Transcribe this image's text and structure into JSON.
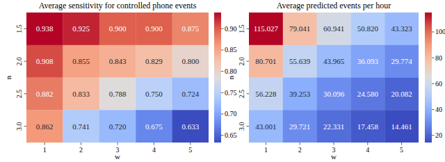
{
  "chart_data": [
    {
      "type": "heatmap",
      "title": "Average sensitivity for controlled phone events",
      "x_label": "w",
      "y_label": "n",
      "categories": [
        "1",
        "2",
        "3",
        "4",
        "5"
      ],
      "rows": [
        "1.5",
        "2.0",
        "2.5",
        "3.0"
      ],
      "values": [
        [
          0.938,
          0.925,
          0.9,
          0.9,
          0.875
        ],
        [
          0.908,
          0.855,
          0.843,
          0.829,
          0.8
        ],
        [
          0.882,
          0.833,
          0.788,
          0.75,
          0.724
        ],
        [
          0.862,
          0.741,
          0.72,
          0.675,
          0.633
        ]
      ],
      "value_labels": [
        [
          "0.938",
          "0.925",
          "0.900",
          "0.900",
          "0.875"
        ],
        [
          "0.908",
          "0.855",
          "0.843",
          "0.829",
          "0.800"
        ],
        [
          "0.882",
          "0.833",
          "0.788",
          "0.750",
          "0.724"
        ],
        [
          "0.862",
          "0.741",
          "0.720",
          "0.675",
          "0.633"
        ]
      ],
      "data_labels": true,
      "colorbar": {
        "range": [
          0.633,
          0.938
        ],
        "ticks": [
          0.65,
          {
            "value": 0.7,
            "label": "0.70"
          },
          0.75,
          {
            "value": 0.8,
            "label": "0.80"
          },
          0.85,
          {
            "value": 0.9,
            "label": "0.90"
          }
        ]
      }
    },
    {
      "type": "heatmap",
      "title": "Average predicted events per hour",
      "x_label": "w",
      "y_label": "n",
      "categories": [
        "1",
        "2",
        "3",
        "4",
        "5"
      ],
      "rows": [
        "1.5",
        "2.0",
        "2.5",
        "3.0"
      ],
      "values": [
        [
          115.027,
          79.041,
          60.941,
          50.82,
          43.323
        ],
        [
          80.701,
          55.639,
          43.965,
          36.093,
          29.774
        ],
        [
          56.228,
          39.253,
          30.096,
          24.58,
          20.082
        ],
        [
          43.001,
          29.721,
          22.331,
          17.458,
          14.461
        ]
      ],
      "value_labels": [
        [
          "115.027",
          "79.041",
          "60.941",
          "50.820",
          "43.323"
        ],
        [
          "80.701",
          "55.639",
          "43.965",
          "36.093",
          "29.774"
        ],
        [
          "56.228",
          "39.253",
          "30.096",
          "24.580",
          "20.082"
        ],
        [
          "43.001",
          "29.721",
          "22.331",
          "17.458",
          "14.461"
        ]
      ],
      "data_labels": true,
      "colorbar": {
        "range": [
          14.461,
          115.027
        ],
        "ticks": [
          20,
          40,
          60,
          80,
          100
        ]
      }
    }
  ]
}
